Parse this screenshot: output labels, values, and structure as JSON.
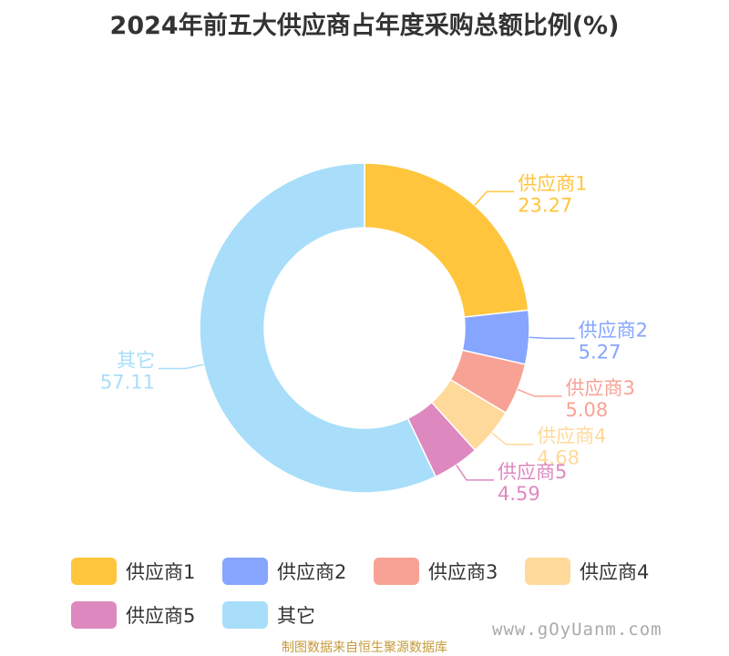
{
  "title": "2024年前五大供应商占年度采购总额比例(%)",
  "chart_data": {
    "type": "pie",
    "donut": true,
    "categories": [
      "供应商1",
      "供应商2",
      "供应商3",
      "供应商4",
      "供应商5",
      "其它"
    ],
    "values": [
      23.27,
      5.27,
      5.08,
      4.68,
      4.59,
      57.11
    ],
    "value_labels": [
      "23.27",
      "5.27",
      "5.08",
      "4.68",
      "4.59",
      "57.11"
    ],
    "colors": [
      "#FFC53D",
      "#85A5FF",
      "#F8A295",
      "#FFD99A",
      "#DE88C0",
      "#A8DEFA"
    ],
    "legend_position": "bottom"
  },
  "source": "制图数据来自恒生聚源数据库",
  "watermark": "www.gOyUanm.com"
}
